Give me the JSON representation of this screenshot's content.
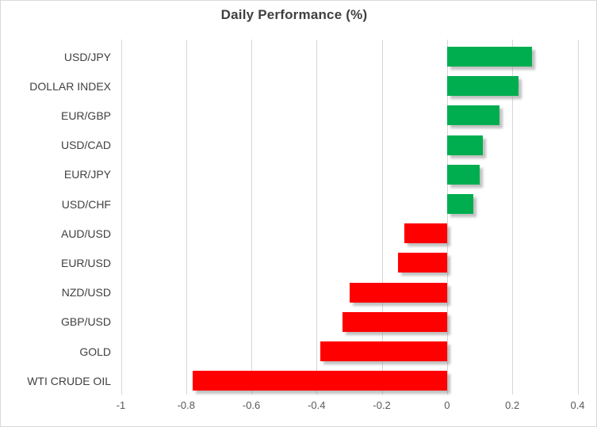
{
  "chart_data": {
    "type": "bar",
    "orientation": "horizontal",
    "title": "Daily Performance (%)",
    "categories": [
      "USD/JPY",
      "DOLLAR INDEX",
      "EUR/GBP",
      "USD/CAD",
      "EUR/JPY",
      "USD/CHF",
      "AUD/USD",
      "EUR/USD",
      "NZD/USD",
      "GBP/USD",
      "GOLD",
      "WTI CRUDE OIL"
    ],
    "values": [
      0.26,
      0.22,
      0.16,
      0.11,
      0.1,
      0.08,
      -0.13,
      -0.15,
      -0.3,
      -0.32,
      -0.39,
      -0.78
    ],
    "xlabel": "",
    "ylabel": "",
    "xlim": [
      -1,
      0.4
    ],
    "x_ticks": [
      -1,
      -0.8,
      -0.6,
      -0.4,
      -0.2,
      0,
      0.2,
      0.4
    ],
    "x_tick_labels": [
      "-1",
      "-0.8",
      "-0.6",
      "-0.4",
      "-0.2",
      "0",
      "0.2",
      "0.4"
    ],
    "grid": "vertical",
    "legend": "none",
    "colors": {
      "positive_bar": "#00ae50",
      "negative_bar": "#ff0000",
      "gridline": "#d6d6d6",
      "chart_border": "#d9d9d9",
      "title_text": "#404040",
      "category_text": "#404040",
      "tick_text": "#595959"
    }
  }
}
